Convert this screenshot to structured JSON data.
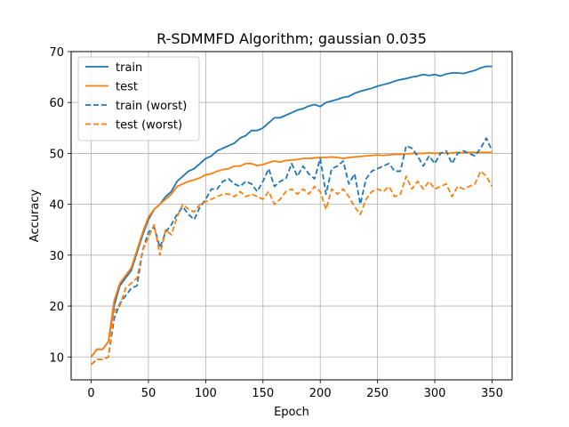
{
  "chart_data": {
    "type": "line",
    "title": "R-SDMMFD Algorithm; gaussian 0.035",
    "xlabel": "Epoch",
    "ylabel": "Accuracy",
    "xlim": [
      -17.5,
      367.5
    ],
    "ylim": [
      5.5,
      70
    ],
    "xticks": [
      0,
      50,
      100,
      150,
      200,
      250,
      300,
      350
    ],
    "yticks": [
      10,
      20,
      30,
      40,
      50,
      60,
      70
    ],
    "grid": true,
    "legend_position": "top-left",
    "series": [
      {
        "name": "train",
        "color": "#1f77b4",
        "dash": "solid",
        "x": [
          0,
          5,
          10,
          15,
          20,
          25,
          30,
          35,
          40,
          45,
          50,
          55,
          60,
          65,
          70,
          75,
          80,
          85,
          90,
          95,
          100,
          105,
          110,
          115,
          120,
          125,
          130,
          135,
          140,
          145,
          150,
          155,
          160,
          165,
          170,
          175,
          180,
          185,
          190,
          195,
          200,
          205,
          210,
          215,
          220,
          225,
          230,
          235,
          240,
          245,
          250,
          255,
          260,
          265,
          270,
          275,
          280,
          285,
          290,
          295,
          300,
          305,
          310,
          315,
          320,
          325,
          330,
          335,
          340,
          345,
          350
        ],
        "y": [
          10.0,
          11.5,
          11.5,
          13.0,
          20.0,
          24.0,
          25.5,
          27.0,
          30.5,
          34.0,
          37.0,
          39.0,
          40.0,
          41.5,
          42.5,
          44.5,
          45.5,
          46.5,
          47.0,
          48.0,
          49.0,
          49.5,
          50.5,
          51.0,
          51.5,
          52.0,
          53.0,
          53.5,
          54.5,
          54.5,
          55.0,
          56.0,
          57.0,
          57.0,
          57.5,
          58.0,
          58.5,
          58.8,
          59.3,
          59.6,
          59.2,
          60.0,
          60.3,
          60.6,
          61.0,
          61.2,
          61.8,
          62.2,
          62.5,
          62.8,
          63.2,
          63.5,
          63.8,
          64.2,
          64.5,
          64.7,
          65.0,
          65.2,
          65.5,
          65.3,
          65.5,
          65.2,
          65.6,
          65.8,
          65.8,
          65.7,
          66.0,
          66.3,
          66.8,
          67.1,
          67.1
        ]
      },
      {
        "name": "test",
        "color": "#ff7f0e",
        "dash": "solid",
        "x": [
          0,
          5,
          10,
          15,
          20,
          25,
          30,
          35,
          40,
          45,
          50,
          55,
          60,
          65,
          70,
          75,
          80,
          85,
          90,
          95,
          100,
          105,
          110,
          115,
          120,
          125,
          130,
          135,
          140,
          145,
          150,
          155,
          160,
          165,
          170,
          175,
          180,
          185,
          190,
          195,
          200,
          205,
          210,
          215,
          220,
          225,
          230,
          235,
          240,
          245,
          250,
          255,
          260,
          265,
          270,
          275,
          280,
          285,
          290,
          295,
          300,
          305,
          310,
          315,
          320,
          325,
          330,
          335,
          340,
          345,
          350
        ],
        "y": [
          10.0,
          11.5,
          11.5,
          13.0,
          21.0,
          24.5,
          26.0,
          27.5,
          31.0,
          34.5,
          37.5,
          39.0,
          40.0,
          41.0,
          42.0,
          43.5,
          44.0,
          44.5,
          44.8,
          45.2,
          45.8,
          46.0,
          46.5,
          46.8,
          47.0,
          47.5,
          47.5,
          48.0,
          48.0,
          47.6,
          47.8,
          48.2,
          48.5,
          48.3,
          48.6,
          48.7,
          48.8,
          49.0,
          49.0,
          49.1,
          49.2,
          49.2,
          49.3,
          49.2,
          49.0,
          49.2,
          49.3,
          49.4,
          49.5,
          49.6,
          49.7,
          49.6,
          49.7,
          49.8,
          49.8,
          49.9,
          50.0,
          50.0,
          50.0,
          50.1,
          50.0,
          50.1,
          50.0,
          50.1,
          50.2,
          50.1,
          50.2,
          50.2,
          50.2,
          50.2,
          50.2
        ]
      },
      {
        "name": "train (worst)",
        "color": "#1f77b4",
        "dash": "dashed",
        "x": [
          0,
          5,
          10,
          15,
          20,
          25,
          30,
          35,
          40,
          45,
          50,
          55,
          60,
          65,
          70,
          75,
          80,
          85,
          90,
          95,
          100,
          105,
          110,
          115,
          120,
          125,
          130,
          135,
          140,
          145,
          150,
          155,
          160,
          165,
          170,
          175,
          180,
          185,
          190,
          195,
          200,
          205,
          210,
          215,
          220,
          225,
          230,
          235,
          240,
          245,
          250,
          255,
          260,
          265,
          270,
          275,
          280,
          285,
          290,
          295,
          300,
          305,
          310,
          315,
          320,
          325,
          330,
          335,
          340,
          345,
          350
        ],
        "y": [
          8.5,
          9.5,
          9.5,
          10.0,
          17.5,
          20.5,
          22.0,
          23.5,
          24.0,
          31.0,
          34.5,
          35.5,
          31.5,
          34.5,
          36.0,
          38.0,
          39.5,
          38.0,
          37.0,
          39.5,
          41.0,
          43.0,
          43.0,
          44.5,
          45.0,
          44.0,
          43.5,
          44.5,
          44.0,
          42.5,
          44.5,
          47.0,
          43.5,
          44.5,
          45.0,
          48.0,
          45.5,
          47.5,
          46.0,
          45.0,
          49.0,
          42.0,
          47.0,
          47.5,
          48.5,
          44.0,
          46.0,
          40.0,
          45.0,
          46.5,
          47.0,
          47.5,
          48.0,
          46.5,
          46.5,
          51.5,
          51.0,
          49.5,
          47.5,
          49.5,
          48.0,
          50.0,
          50.5,
          48.0,
          50.0,
          50.5,
          50.0,
          49.5,
          51.0,
          53.0,
          50.5
        ]
      },
      {
        "name": "test (worst)",
        "color": "#ff7f0e",
        "dash": "dashed",
        "x": [
          0,
          5,
          10,
          15,
          20,
          25,
          30,
          35,
          40,
          45,
          50,
          55,
          60,
          65,
          70,
          75,
          80,
          85,
          90,
          95,
          100,
          105,
          110,
          115,
          120,
          125,
          130,
          135,
          140,
          145,
          150,
          155,
          160,
          165,
          170,
          175,
          180,
          185,
          190,
          195,
          200,
          205,
          210,
          215,
          220,
          225,
          230,
          235,
          240,
          245,
          250,
          255,
          260,
          265,
          270,
          275,
          280,
          285,
          290,
          295,
          300,
          305,
          310,
          315,
          320,
          325,
          330,
          335,
          340,
          345,
          350
        ],
        "y": [
          8.5,
          9.5,
          9.5,
          10.0,
          19.0,
          20.0,
          23.5,
          24.5,
          25.5,
          31.0,
          33.5,
          36.0,
          30.0,
          35.0,
          34.0,
          37.5,
          40.0,
          39.0,
          38.5,
          40.0,
          40.5,
          41.0,
          41.5,
          42.0,
          42.0,
          41.5,
          42.5,
          41.5,
          42.0,
          41.5,
          41.0,
          42.5,
          40.0,
          41.0,
          42.5,
          43.0,
          42.0,
          43.0,
          42.0,
          43.5,
          42.5,
          39.0,
          43.0,
          42.0,
          43.0,
          41.5,
          39.5,
          38.0,
          41.0,
          42.5,
          43.0,
          42.5,
          43.5,
          41.5,
          42.0,
          45.5,
          43.0,
          44.5,
          43.0,
          44.5,
          43.0,
          43.5,
          44.0,
          41.5,
          43.5,
          43.0,
          43.5,
          44.0,
          46.5,
          45.5,
          43.5
        ]
      }
    ]
  }
}
